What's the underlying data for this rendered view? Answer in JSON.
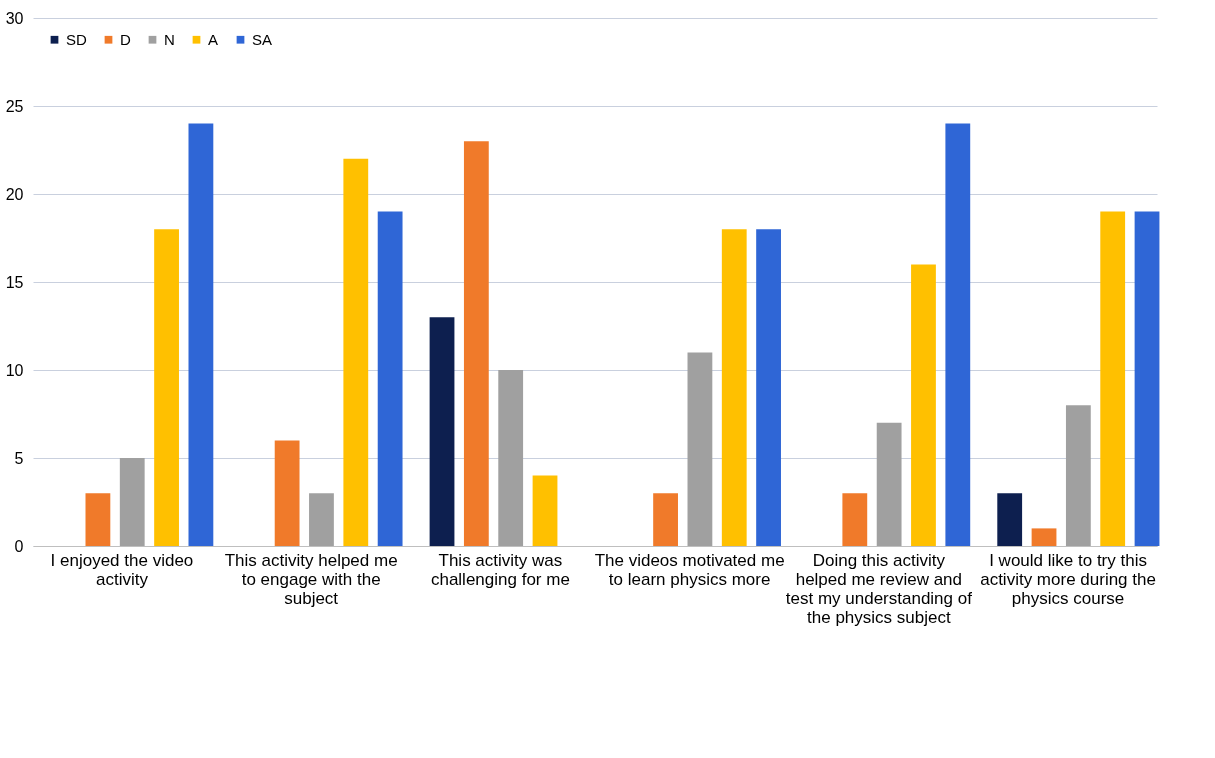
{
  "chart_data": {
    "type": "bar",
    "categories": [
      "I enjoyed the video activity",
      "This activity helped me to engage with the subject",
      "This activity was challenging for me",
      "The videos motivated me to learn physics more",
      "Doing this activity helped me review and test my understanding of the physics subject",
      "I would like to try this activity more during the physics course"
    ],
    "series": [
      {
        "name": "SD",
        "color": "#0d1f4f",
        "values": [
          0,
          0,
          13,
          0,
          0,
          3
        ]
      },
      {
        "name": "D",
        "color": "#f07a2a",
        "values": [
          3,
          6,
          23,
          3,
          3,
          1
        ]
      },
      {
        "name": "N",
        "color": "#a0a0a0",
        "values": [
          5,
          3,
          10,
          11,
          7,
          8
        ]
      },
      {
        "name": "A",
        "color": "#ffc000",
        "values": [
          18,
          22,
          4,
          18,
          16,
          19
        ]
      },
      {
        "name": "SA",
        "color": "#2f66d6",
        "values": [
          24,
          19,
          0,
          18,
          24,
          19
        ]
      }
    ],
    "ylim": [
      0,
      30
    ],
    "yticks": [
      0,
      5,
      10,
      15,
      20,
      25,
      30
    ],
    "grid": "y",
    "legend": "top left"
  }
}
